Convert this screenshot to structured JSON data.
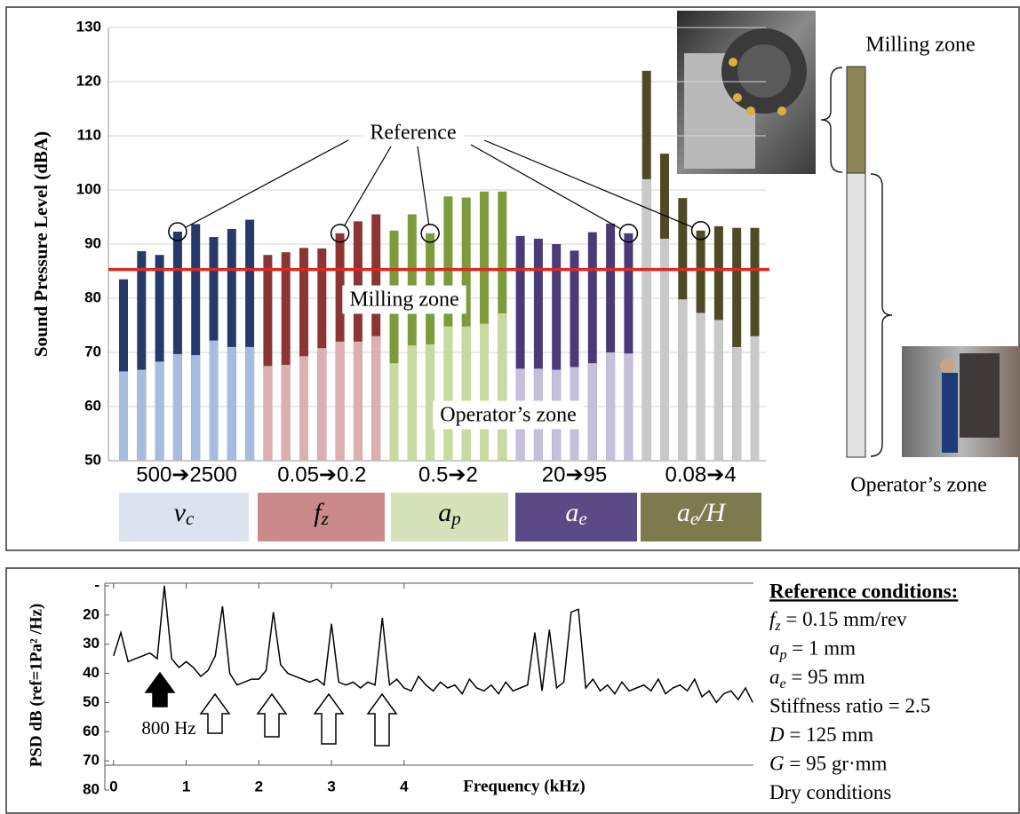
{
  "chart_data": [
    {
      "type": "bar",
      "ylabel": "Sound Pressure Level (dBA)",
      "ylim": [
        50,
        130
      ],
      "yticks": [
        50,
        60,
        70,
        80,
        90,
        100,
        110,
        120,
        130
      ],
      "grid": true,
      "threshold": 85.3,
      "threshold_color": "#d92b1f",
      "annotations": {
        "reference": "Reference",
        "milling_zone": "Milling zone",
        "operator_zone": "Operator’s zone"
      },
      "groups": [
        {
          "range": "500➔2500",
          "symbol": "v",
          "sub": "c",
          "box_color": "#dbe3f1",
          "text_color": "#000000",
          "colors": {
            "milling": "#26396a",
            "operator": "#a8bce0"
          },
          "milling": [
            83.5,
            88.7,
            88,
            92.3,
            93.7,
            91.3,
            92.8,
            94.5
          ],
          "operator": [
            66.5,
            66.8,
            68.3,
            69.7,
            69.5,
            72.2,
            71,
            71
          ],
          "reference_index": 3
        },
        {
          "range": "0.05➔0.2",
          "symbol": "f",
          "sub": "z",
          "box_color": "#c98a89",
          "text_color": "#000000",
          "colors": {
            "milling": "#8b3535",
            "operator": "#dcb0ae"
          },
          "milling": [
            88,
            88.5,
            89.3,
            89.2,
            92,
            94.2,
            95.5
          ],
          "operator": [
            67.5,
            67.7,
            69.3,
            70.8,
            72,
            72,
            73
          ],
          "reference_index": 4
        },
        {
          "range": "0.5➔2",
          "symbol": "a",
          "sub": "p",
          "box_color": "#d6e3ba",
          "text_color": "#000000",
          "colors": {
            "milling": "#7c9b3b",
            "operator": "#c8da9f"
          },
          "milling": [
            92.5,
            95.5,
            92,
            98.8,
            98.6,
            99.7,
            99.7
          ],
          "operator": [
            68,
            71.3,
            71.5,
            74.8,
            74.8,
            75.3,
            77.2
          ],
          "reference_index": 2
        },
        {
          "range": "20➔95",
          "symbol": "a",
          "sub": "e",
          "box_color": "#5b4a86",
          "text_color": "#ffffff",
          "colors": {
            "milling": "#4a3a78",
            "operator": "#c6bfdc"
          },
          "milling": [
            91.5,
            91,
            90,
            88.8,
            92.2,
            93.8,
            92
          ],
          "operator": [
            67,
            67,
            66.8,
            67.3,
            68,
            70,
            69.8
          ],
          "reference_index": 6
        },
        {
          "range": "0.08➔4",
          "symbol": "a",
          "sub": "e",
          "suffix": "/H",
          "box_color": "#7d7a4e",
          "text_color": "#ffffff",
          "colors": {
            "milling": "#4d4a26",
            "operator": "#c9c9c9"
          },
          "milling": [
            122,
            106.7,
            98.5,
            92.5,
            93.3,
            93,
            93
          ],
          "operator": [
            102,
            91,
            79.8,
            77.3,
            76,
            71,
            73
          ],
          "reference_index": 3
        }
      ]
    },
    {
      "type": "line",
      "ylabel": "PSD dB (ref=1Pa² /Hz)",
      "xlabel": "Frequency (kHz)",
      "annotation": "800 Hz",
      "color": "#000000",
      "xlim": [
        -0.12,
        8.81
      ],
      "xticks": [
        0,
        1,
        2,
        3,
        4
      ],
      "ylim": [
        80,
        10
      ],
      "yticks": [
        {
          "value": 10,
          "label": "-"
        },
        20,
        30,
        40,
        50,
        60,
        70,
        80
      ],
      "x": [
        0,
        0.1,
        0.2,
        0.3,
        0.4,
        0.5,
        0.6,
        0.7,
        0.8,
        0.9,
        1,
        1.1,
        1.2,
        1.3,
        1.4,
        1.5,
        1.6,
        1.7,
        1.8,
        1.9,
        2,
        2.1,
        2.2,
        2.3,
        2.4,
        2.5,
        2.6,
        2.7,
        2.8,
        2.9,
        3,
        3.1,
        3.2,
        3.3,
        3.4,
        3.5,
        3.6,
        3.7,
        3.8,
        3.9,
        4,
        4.1,
        4.2,
        4.3,
        4.4,
        4.5,
        4.6,
        4.7,
        4.8,
        4.9,
        5,
        5.1,
        5.2,
        5.3,
        5.4,
        5.5,
        5.6,
        5.7,
        5.8,
        5.9,
        6,
        6.1,
        6.2,
        6.3,
        6.4,
        6.5,
        6.6,
        6.7,
        6.8,
        6.9,
        7,
        7.1,
        7.2,
        7.3,
        7.4,
        7.5,
        7.6,
        7.7,
        7.8,
        7.9,
        8,
        8.1,
        8.2,
        8.3,
        8.4,
        8.5,
        8.6,
        8.7,
        8.8
      ],
      "values": [
        34,
        26,
        36,
        35,
        34,
        33,
        35,
        10,
        35,
        38,
        36,
        38,
        41,
        39,
        34,
        17,
        40,
        44,
        43,
        42,
        42,
        39,
        19,
        37,
        40,
        41,
        42,
        43,
        42,
        44,
        23,
        43,
        44,
        43,
        45,
        43,
        44,
        21,
        44,
        42,
        45,
        46,
        41,
        44,
        46,
        43,
        45,
        44,
        47,
        42,
        45,
        46,
        44,
        47,
        43,
        46,
        45,
        44,
        26,
        46,
        25,
        45,
        43,
        19,
        18,
        45,
        42,
        46,
        44,
        47,
        43,
        46,
        45,
        44,
        46,
        42,
        47,
        45,
        44,
        46,
        42,
        48,
        46,
        50,
        47,
        46,
        49,
        45,
        50
      ]
    }
  ],
  "schematic": {
    "milling_label": "Milling zone",
    "operator_label": "Operator’s zone"
  },
  "reference_conditions": {
    "title": "Reference conditions:",
    "items": [
      {
        "symbol": "f",
        "sub": "z",
        "text": " = 0.15 mm/rev"
      },
      {
        "symbol": "a",
        "sub": "p",
        "text": " = 1 mm"
      },
      {
        "symbol": "a",
        "sub": "e",
        "text": " = 95 mm"
      },
      {
        "text": "Stiffness ratio = 2.5"
      },
      {
        "symbol": "D",
        "text": " = 125 mm"
      },
      {
        "symbol": "G",
        "text": " = 95 gr·mm"
      },
      {
        "text": "Dry conditions"
      }
    ]
  }
}
